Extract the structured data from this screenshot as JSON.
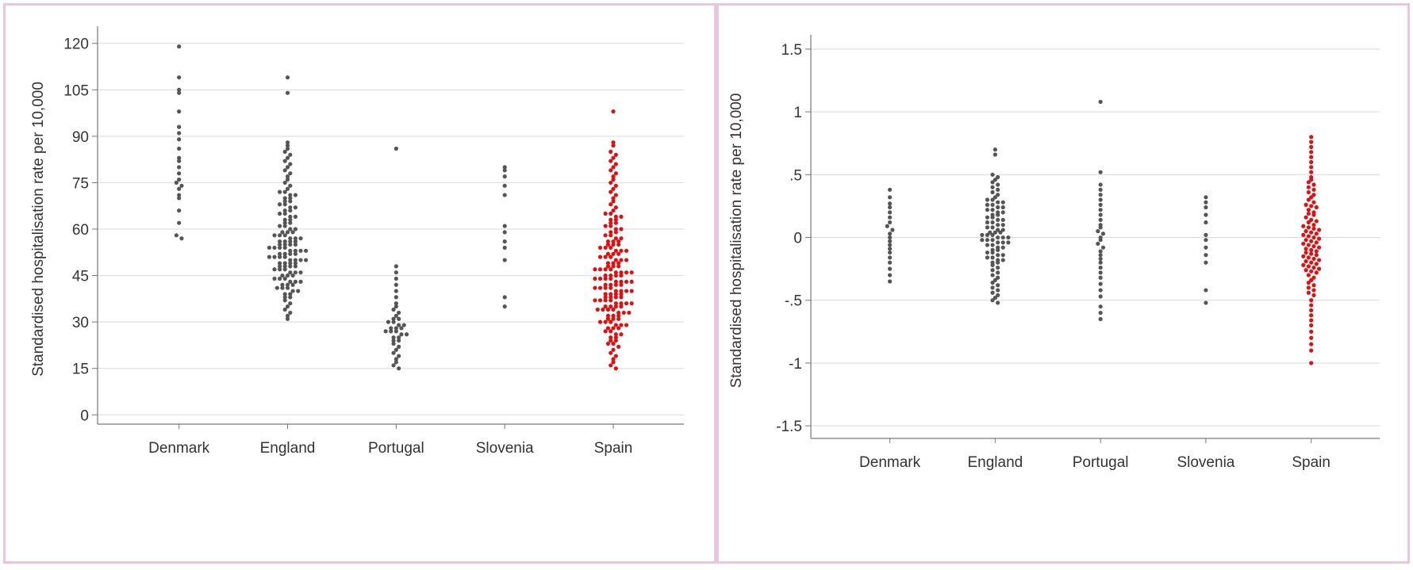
{
  "colors": {
    "grey": "#555555",
    "highlight": "#e01010",
    "grid": "#d9d9d9",
    "axis": "#777777",
    "border": "#e9c6df"
  },
  "chart_data": [
    {
      "type": "scatter",
      "subtype": "dot-strip-plot",
      "ylabel": "Standardised hospitalisation rate per 10,000",
      "categories": [
        "Denmark",
        "England",
        "Portugal",
        "Slovenia",
        "Spain"
      ],
      "highlight_category": "Spain",
      "yticks": [
        0,
        15,
        30,
        45,
        60,
        75,
        90,
        105,
        120
      ],
      "ylim": [
        -3,
        123
      ],
      "grid": true,
      "series": [
        {
          "category": "Denmark",
          "values": [
            119,
            109,
            105,
            104,
            98,
            93,
            91,
            89,
            86,
            83,
            82,
            80,
            78,
            76,
            75,
            74,
            73,
            71,
            70,
            66,
            62,
            58,
            57
          ]
        },
        {
          "category": "England",
          "values": [
            109,
            104,
            88,
            87,
            86,
            85,
            84,
            83,
            82,
            81,
            80,
            79,
            78,
            77,
            76,
            75,
            74,
            73,
            72,
            72,
            71,
            71,
            70,
            70,
            69,
            69,
            68,
            68,
            67,
            67,
            66,
            66,
            65,
            65,
            64,
            64,
            63,
            63,
            62,
            62,
            61,
            61,
            60,
            60,
            59,
            59,
            59,
            58,
            58,
            58,
            57,
            57,
            57,
            56,
            56,
            56,
            56,
            55,
            55,
            55,
            55,
            54,
            54,
            54,
            54,
            53,
            53,
            53,
            53,
            52,
            52,
            52,
            52,
            51,
            51,
            51,
            51,
            50,
            50,
            50,
            50,
            49,
            49,
            49,
            49,
            48,
            48,
            48,
            48,
            47,
            47,
            47,
            46,
            46,
            46,
            45,
            45,
            45,
            44,
            44,
            44,
            43,
            43,
            43,
            42,
            42,
            42,
            41,
            41,
            41,
            40,
            40,
            39,
            39,
            38,
            38,
            37,
            36,
            35,
            34,
            33,
            32,
            31
          ]
        },
        {
          "category": "Portugal",
          "values": [
            86,
            48,
            46,
            44,
            42,
            40,
            38,
            36,
            35,
            34,
            33,
            32,
            31,
            31,
            30,
            30,
            29,
            29,
            28,
            28,
            28,
            27,
            27,
            27,
            26,
            26,
            25,
            25,
            24,
            24,
            23,
            22,
            21,
            20,
            19,
            18,
            17,
            16,
            15
          ]
        },
        {
          "category": "Slovenia",
          "values": [
            80,
            79,
            77,
            74,
            71,
            61,
            59,
            56,
            54,
            50,
            38,
            35
          ]
        },
        {
          "category": "Spain",
          "values": [
            98,
            88,
            87,
            85,
            84,
            83,
            82,
            81,
            80,
            79,
            78,
            77,
            76,
            75,
            74,
            73,
            72,
            71,
            70,
            69,
            68,
            67,
            66,
            65,
            65,
            64,
            64,
            63,
            63,
            62,
            62,
            61,
            61,
            60,
            60,
            59,
            59,
            58,
            58,
            57,
            57,
            56,
            56,
            56,
            55,
            55,
            55,
            54,
            54,
            54,
            53,
            53,
            53,
            52,
            52,
            52,
            51,
            51,
            51,
            50,
            50,
            50,
            49,
            49,
            49,
            48,
            48,
            48,
            47,
            47,
            47,
            47,
            46,
            46,
            46,
            46,
            45,
            45,
            45,
            45,
            44,
            44,
            44,
            44,
            43,
            43,
            43,
            43,
            42,
            42,
            42,
            42,
            41,
            41,
            41,
            41,
            40,
            40,
            40,
            40,
            39,
            39,
            39,
            39,
            38,
            38,
            38,
            38,
            37,
            37,
            37,
            37,
            36,
            36,
            36,
            36,
            35,
            35,
            35,
            35,
            34,
            34,
            34,
            34,
            33,
            33,
            33,
            32,
            32,
            32,
            31,
            31,
            31,
            30,
            30,
            30,
            29,
            29,
            29,
            28,
            28,
            28,
            27,
            27,
            26,
            26,
            25,
            25,
            24,
            24,
            23,
            23,
            22,
            21,
            20,
            19,
            18,
            17,
            16,
            15
          ]
        }
      ]
    },
    {
      "type": "scatter",
      "subtype": "dot-strip-plot",
      "ylabel": "Standardised hospitalisation rate per 10,000",
      "categories": [
        "Denmark",
        "England",
        "Portugal",
        "Slovenia",
        "Spain"
      ],
      "highlight_category": "Spain",
      "yticks": [
        -1.5,
        -1,
        -0.5,
        0,
        0.5,
        1,
        1.5
      ],
      "ytick_labels": [
        "-1.5",
        "-1",
        "-.5",
        "0",
        ".5",
        "1",
        "1.5"
      ],
      "ylim": [
        -1.6,
        1.55
      ],
      "grid": true,
      "series": [
        {
          "category": "Denmark",
          "values": [
            0.38,
            0.32,
            0.27,
            0.24,
            0.2,
            0.16,
            0.12,
            0.09,
            0.06,
            0.03,
            0.0,
            -0.03,
            -0.06,
            -0.09,
            -0.12,
            -0.16,
            -0.2,
            -0.25,
            -0.3,
            -0.35
          ]
        },
        {
          "category": "England",
          "values": [
            0.7,
            0.66,
            0.5,
            0.48,
            0.46,
            0.44,
            0.42,
            0.4,
            0.38,
            0.36,
            0.34,
            0.32,
            0.3,
            0.3,
            0.28,
            0.28,
            0.26,
            0.26,
            0.24,
            0.24,
            0.22,
            0.22,
            0.2,
            0.2,
            0.18,
            0.18,
            0.16,
            0.16,
            0.14,
            0.14,
            0.12,
            0.12,
            0.1,
            0.1,
            0.08,
            0.08,
            0.06,
            0.06,
            0.04,
            0.04,
            0.04,
            0.02,
            0.02,
            0.02,
            0.0,
            0.0,
            0.0,
            -0.02,
            -0.02,
            -0.02,
            -0.04,
            -0.04,
            -0.04,
            -0.06,
            -0.06,
            -0.08,
            -0.08,
            -0.1,
            -0.1,
            -0.12,
            -0.12,
            -0.14,
            -0.14,
            -0.16,
            -0.16,
            -0.18,
            -0.18,
            -0.2,
            -0.2,
            -0.22,
            -0.24,
            -0.26,
            -0.28,
            -0.3,
            -0.32,
            -0.34,
            -0.36,
            -0.38,
            -0.4,
            -0.42,
            -0.44,
            -0.46,
            -0.48,
            -0.5,
            -0.52
          ]
        },
        {
          "category": "Portugal",
          "values": [
            1.08,
            0.52,
            0.42,
            0.38,
            0.34,
            0.3,
            0.26,
            0.22,
            0.18,
            0.14,
            0.1,
            0.08,
            0.05,
            0.03,
            0.0,
            -0.02,
            -0.05,
            -0.08,
            -0.11,
            -0.14,
            -0.17,
            -0.2,
            -0.24,
            -0.28,
            -0.32,
            -0.37,
            -0.42,
            -0.47,
            -0.55,
            -0.6,
            -0.65
          ]
        },
        {
          "category": "Slovenia",
          "values": [
            0.32,
            0.28,
            0.24,
            0.18,
            0.12,
            0.02,
            -0.02,
            -0.08,
            -0.14,
            -0.2,
            -0.42,
            -0.52
          ]
        },
        {
          "category": "Spain",
          "values": [
            0.8,
            0.76,
            0.72,
            0.68,
            0.64,
            0.6,
            0.56,
            0.52,
            0.48,
            0.46,
            0.44,
            0.42,
            0.4,
            0.38,
            0.36,
            0.34,
            0.32,
            0.3,
            0.28,
            0.26,
            0.25,
            0.24,
            0.22,
            0.2,
            0.19,
            0.18,
            0.16,
            0.14,
            0.13,
            0.12,
            0.1,
            0.09,
            0.08,
            0.07,
            0.06,
            0.05,
            0.04,
            0.03,
            0.02,
            0.01,
            0.0,
            -0.01,
            -0.02,
            -0.03,
            -0.04,
            -0.05,
            -0.06,
            -0.07,
            -0.08,
            -0.09,
            -0.1,
            -0.11,
            -0.12,
            -0.13,
            -0.14,
            -0.15,
            -0.16,
            -0.17,
            -0.18,
            -0.19,
            -0.2,
            -0.21,
            -0.22,
            -0.23,
            -0.24,
            -0.25,
            -0.26,
            -0.27,
            -0.28,
            -0.3,
            -0.32,
            -0.34,
            -0.36,
            -0.38,
            -0.4,
            -0.42,
            -0.44,
            -0.46,
            -0.5,
            -0.54,
            -0.58,
            -0.62,
            -0.66,
            -0.7,
            -0.75,
            -0.8,
            -0.85,
            -0.9,
            -1.0
          ]
        }
      ]
    }
  ]
}
